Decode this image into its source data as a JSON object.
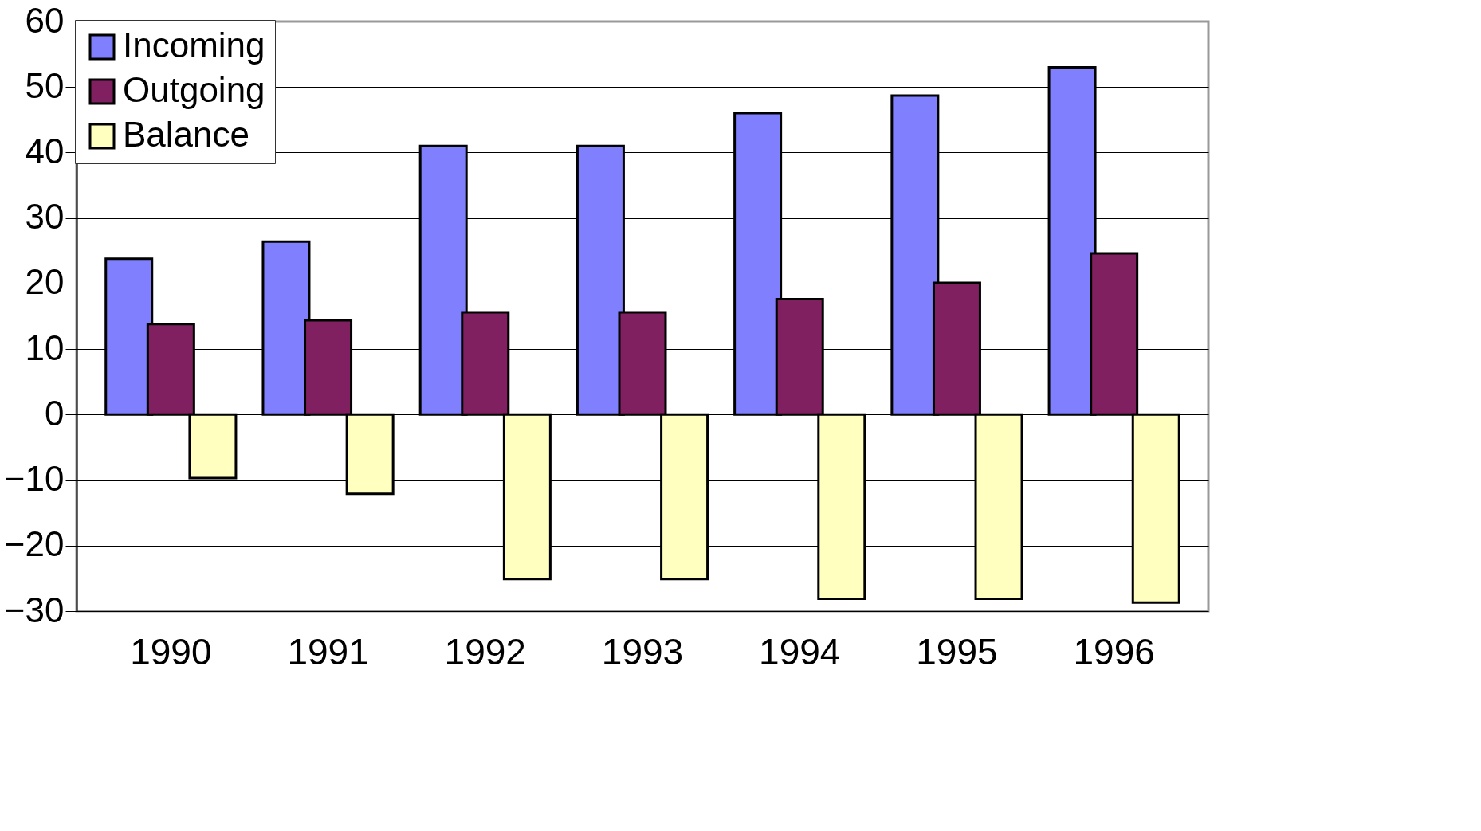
{
  "chart_data": {
    "type": "bar",
    "categories": [
      "1990",
      "1991",
      "1992",
      "1993",
      "1994",
      "1995",
      "1996"
    ],
    "series": [
      {
        "name": "Incoming",
        "color": "#8080ff",
        "values": [
          23.8,
          26.4,
          41,
          41,
          46,
          48.7,
          53
        ]
      },
      {
        "name": "Outgoing",
        "color": "#802060",
        "values": [
          13.8,
          14.4,
          15.6,
          15.6,
          17.6,
          20.1,
          24.6
        ]
      },
      {
        "name": "Balance",
        "color": "#ffffc0",
        "values": [
          -9.7,
          -12.1,
          -25.1,
          -25.1,
          -28.1,
          -28.1,
          -28.7
        ]
      }
    ],
    "ylim": [
      -30,
      60
    ],
    "yticks": [
      -30,
      -20,
      -10,
      0,
      10,
      20,
      30,
      40,
      50,
      60
    ],
    "grid": "y",
    "legend": "top left"
  }
}
